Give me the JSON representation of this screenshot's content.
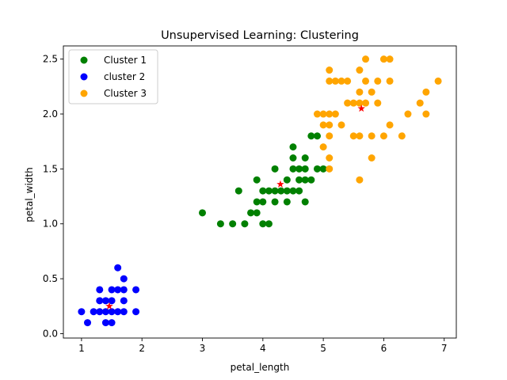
{
  "chart_data": {
    "type": "scatter",
    "title": "Unsupervised Learning: Clustering",
    "xlabel": "petal_length",
    "ylabel": "petal_width",
    "xlim": [
      0.7,
      7.2
    ],
    "ylim": [
      -0.04,
      2.62
    ],
    "xticks": [
      1,
      2,
      3,
      4,
      5,
      6,
      7
    ],
    "xtick_labels": [
      "1",
      "2",
      "3",
      "4",
      "5",
      "6",
      "7"
    ],
    "yticks": [
      0.0,
      0.5,
      1.0,
      1.5,
      2.0,
      2.5
    ],
    "ytick_labels": [
      "0.0",
      "0.5",
      "1.0",
      "1.5",
      "2.0",
      "2.5"
    ],
    "grid": false,
    "legend_position": "upper-left",
    "series": [
      {
        "name": "Cluster 1",
        "color": "#008000",
        "points": [
          [
            3.0,
            1.1
          ],
          [
            3.3,
            1.0
          ],
          [
            3.5,
            1.0
          ],
          [
            3.6,
            1.3
          ],
          [
            3.7,
            1.0
          ],
          [
            3.8,
            1.1
          ],
          [
            3.9,
            1.1
          ],
          [
            3.9,
            1.2
          ],
          [
            3.9,
            1.4
          ],
          [
            4.0,
            1.0
          ],
          [
            4.0,
            1.2
          ],
          [
            4.0,
            1.3
          ],
          [
            4.1,
            1.0
          ],
          [
            4.1,
            1.3
          ],
          [
            4.2,
            1.2
          ],
          [
            4.2,
            1.3
          ],
          [
            4.2,
            1.5
          ],
          [
            4.3,
            1.3
          ],
          [
            4.4,
            1.2
          ],
          [
            4.4,
            1.3
          ],
          [
            4.4,
            1.4
          ],
          [
            4.5,
            1.3
          ],
          [
            4.5,
            1.5
          ],
          [
            4.5,
            1.6
          ],
          [
            4.5,
            1.7
          ],
          [
            4.6,
            1.3
          ],
          [
            4.6,
            1.4
          ],
          [
            4.6,
            1.5
          ],
          [
            4.7,
            1.2
          ],
          [
            4.7,
            1.4
          ],
          [
            4.7,
            1.5
          ],
          [
            4.7,
            1.6
          ],
          [
            4.8,
            1.4
          ],
          [
            4.8,
            1.8
          ],
          [
            4.9,
            1.5
          ],
          [
            4.9,
            1.8
          ],
          [
            5.0,
            1.5
          ]
        ]
      },
      {
        "name": "cluster 2",
        "color": "#0000ff",
        "points": [
          [
            1.0,
            0.2
          ],
          [
            1.1,
            0.1
          ],
          [
            1.2,
            0.2
          ],
          [
            1.3,
            0.2
          ],
          [
            1.3,
            0.3
          ],
          [
            1.3,
            0.4
          ],
          [
            1.4,
            0.1
          ],
          [
            1.4,
            0.2
          ],
          [
            1.4,
            0.3
          ],
          [
            1.5,
            0.1
          ],
          [
            1.5,
            0.2
          ],
          [
            1.5,
            0.3
          ],
          [
            1.5,
            0.4
          ],
          [
            1.6,
            0.2
          ],
          [
            1.6,
            0.4
          ],
          [
            1.6,
            0.6
          ],
          [
            1.7,
            0.2
          ],
          [
            1.7,
            0.3
          ],
          [
            1.7,
            0.4
          ],
          [
            1.7,
            0.5
          ],
          [
            1.9,
            0.2
          ],
          [
            1.9,
            0.4
          ]
        ]
      },
      {
        "name": "Cluster 3",
        "color": "#ffa500",
        "points": [
          [
            4.9,
            2.0
          ],
          [
            5.0,
            1.7
          ],
          [
            5.0,
            1.9
          ],
          [
            5.0,
            2.0
          ],
          [
            5.1,
            1.5
          ],
          [
            5.1,
            1.6
          ],
          [
            5.1,
            1.8
          ],
          [
            5.1,
            1.9
          ],
          [
            5.1,
            2.0
          ],
          [
            5.1,
            2.3
          ],
          [
            5.1,
            2.4
          ],
          [
            5.2,
            2.0
          ],
          [
            5.2,
            2.3
          ],
          [
            5.3,
            1.9
          ],
          [
            5.3,
            2.3
          ],
          [
            5.4,
            2.1
          ],
          [
            5.4,
            2.3
          ],
          [
            5.5,
            1.8
          ],
          [
            5.5,
            2.1
          ],
          [
            5.6,
            1.4
          ],
          [
            5.6,
            1.8
          ],
          [
            5.6,
            2.1
          ],
          [
            5.6,
            2.2
          ],
          [
            5.6,
            2.4
          ],
          [
            5.7,
            2.1
          ],
          [
            5.7,
            2.3
          ],
          [
            5.7,
            2.5
          ],
          [
            5.8,
            1.6
          ],
          [
            5.8,
            1.8
          ],
          [
            5.8,
            2.2
          ],
          [
            5.9,
            2.1
          ],
          [
            5.9,
            2.3
          ],
          [
            6.0,
            1.8
          ],
          [
            6.0,
            2.5
          ],
          [
            6.1,
            1.9
          ],
          [
            6.1,
            2.3
          ],
          [
            6.1,
            2.5
          ],
          [
            6.3,
            1.8
          ],
          [
            6.4,
            2.0
          ],
          [
            6.6,
            2.1
          ],
          [
            6.7,
            2.0
          ],
          [
            6.7,
            2.2
          ],
          [
            6.9,
            2.3
          ]
        ]
      }
    ],
    "centroids": {
      "color": "#ff0000",
      "marker": "star",
      "points": [
        [
          4.29,
          1.36
        ],
        [
          1.46,
          0.25
        ],
        [
          5.63,
          2.05
        ]
      ]
    }
  }
}
